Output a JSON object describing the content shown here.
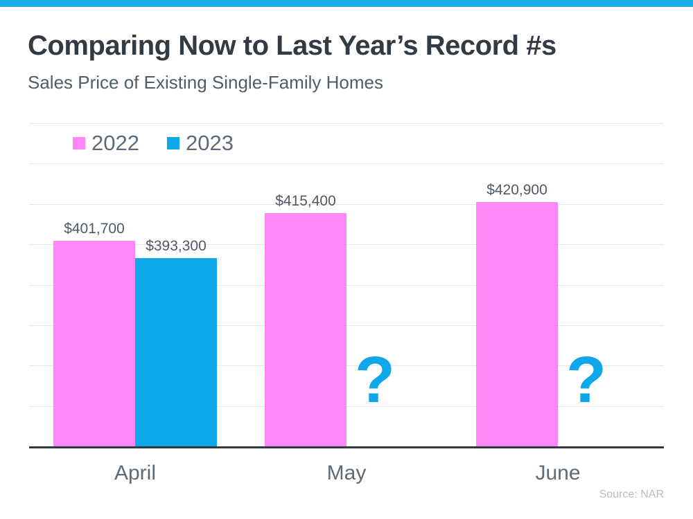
{
  "header": {
    "title": "Comparing Now to Last Year’s Record #s",
    "subtitle": "Sales Price of Existing Single-Family Homes"
  },
  "colors": {
    "top_accent": "#19ACEA",
    "pink_2022": "#FE86F6",
    "blue_2023": "#0EA7E9",
    "axis": "#30383F",
    "gridline": "#E5E7EA"
  },
  "chart_data": {
    "type": "bar",
    "categories": [
      "April",
      "May",
      "June"
    ],
    "series": [
      {
        "name": "2022",
        "color": "#FE86F6",
        "values": [
          401700,
          415400,
          420900
        ],
        "labels": [
          "$401,700",
          "$415,400",
          "$420,900"
        ]
      },
      {
        "name": "2023",
        "color": "#0EA7E9",
        "values": [
          393300,
          null,
          null
        ],
        "labels": [
          "$393,300",
          null,
          null
        ]
      }
    ],
    "missing_marker": "?",
    "ylim": [
      300000,
      460000
    ],
    "grid": true,
    "gridline_step": 20000,
    "legend_position": "top-left",
    "xlabel": "",
    "ylabel": ""
  },
  "footer": {
    "source": "Source: NAR"
  }
}
